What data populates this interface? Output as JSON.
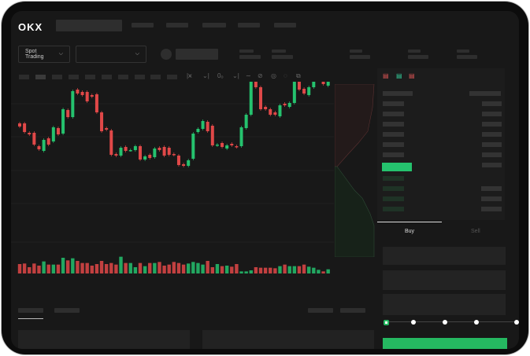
{
  "header": {
    "logo": "OKX",
    "nav_items": [
      "",
      "",
      "",
      "",
      ""
    ]
  },
  "toolbar": {
    "market_type": "Spot Trading",
    "market_type_icon": "chevron-down-icon",
    "pair_select_icon": "chevron-down-icon"
  },
  "orderbook": {
    "view_icons": [
      "orderbook-both-icon",
      "orderbook-bids-icon",
      "orderbook-asks-icon"
    ]
  },
  "order_form": {
    "tabs": [
      {
        "label": "Buy",
        "active": true
      },
      {
        "label": "Sell",
        "active": false
      }
    ],
    "slider_percent": 0,
    "slider_stops": [
      0,
      25,
      50,
      75,
      100
    ]
  },
  "colors": {
    "up": "#25c26e",
    "down": "#e04848",
    "background": "#181818",
    "accent_button": "#25b861"
  },
  "chart_data": {
    "type": "candlestick",
    "title": "",
    "xlabel": "",
    "ylabel": "",
    "grid": true,
    "ylim": [
      0,
      250
    ],
    "candles": [
      [
        167,
        163
      ],
      [
        167,
        156
      ],
      [
        155,
        153
      ],
      [
        155,
        140
      ],
      [
        138,
        134
      ],
      [
        132,
        146
      ],
      [
        148,
        140
      ],
      [
        144,
        162
      ],
      [
        161,
        153
      ],
      [
        154,
        185
      ],
      [
        184,
        175
      ],
      [
        175,
        208
      ],
      [
        210,
        205
      ],
      [
        207,
        203
      ],
      [
        207,
        195
      ],
      [
        203,
        201
      ],
      [
        204,
        181
      ],
      [
        181,
        157
      ],
      [
        161,
        159
      ],
      [
        158,
        127
      ],
      [
        128,
        126
      ],
      [
        126,
        136
      ],
      [
        137,
        132
      ],
      [
        133,
        133
      ],
      [
        133,
        138
      ],
      [
        138,
        121
      ],
      [
        121,
        125
      ],
      [
        127,
        123
      ],
      [
        124,
        135
      ],
      [
        136,
        133
      ],
      [
        137,
        126
      ],
      [
        136,
        127
      ],
      [
        128,
        127
      ],
      [
        126,
        114
      ],
      [
        115,
        113
      ],
      [
        113,
        120
      ],
      [
        122,
        154
      ],
      [
        156,
        160
      ],
      [
        160,
        170
      ],
      [
        169,
        157
      ],
      [
        164,
        139
      ],
      [
        139,
        140
      ],
      [
        142,
        137
      ],
      [
        135,
        139
      ],
      [
        141,
        139
      ],
      [
        138,
        137
      ],
      [
        138,
        162
      ],
      [
        161,
        178
      ],
      [
        178,
        225
      ],
      [
        227,
        213
      ],
      [
        213,
        185
      ],
      [
        188,
        185
      ],
      [
        185,
        178
      ],
      [
        181,
        178
      ],
      [
        176,
        190
      ],
      [
        192,
        190
      ],
      [
        188,
        193
      ],
      [
        193,
        222
      ],
      [
        224,
        210
      ],
      [
        211,
        205
      ],
      [
        203,
        213
      ],
      [
        213,
        224
      ],
      [
        224,
        233
      ],
      [
        224,
        217
      ],
      [
        215,
        221
      ]
    ],
    "volume": [
      36,
      38,
      24,
      38,
      30,
      46,
      34,
      34,
      34,
      60,
      50,
      58,
      48,
      40,
      40,
      30,
      36,
      48,
      36,
      40,
      34,
      64,
      40,
      40,
      24,
      40,
      28,
      40,
      40,
      44,
      30,
      34,
      44,
      40,
      34,
      38,
      44,
      40,
      34,
      48,
      24,
      36,
      28,
      30,
      26,
      36,
      8,
      8,
      12,
      24,
      22,
      22,
      22,
      20,
      28,
      34,
      28,
      28,
      28,
      34,
      26,
      22,
      14,
      8,
      16
    ]
  }
}
